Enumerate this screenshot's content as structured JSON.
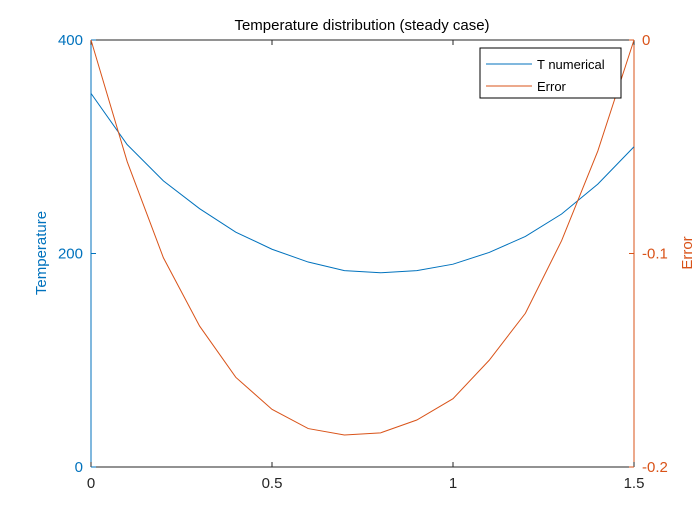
{
  "chart_data": {
    "type": "line",
    "title": "Temperature distribution (steady case)",
    "xlabel": "",
    "xlim": [
      0,
      1.5
    ],
    "x_ticks": [
      "0",
      "0.5",
      "1",
      "1.5"
    ],
    "y_left": {
      "label": "Temperature",
      "lim": [
        0,
        400
      ],
      "ticks": [
        "0",
        "200",
        "400"
      ],
      "color": "#0072BD"
    },
    "y_right": {
      "label": "Error",
      "lim": [
        -0.2,
        0
      ],
      "ticks": [
        "-0.2",
        "-0.1",
        "0"
      ],
      "color": "#D95319"
    },
    "legend_position": "top-right",
    "grid": false,
    "series": [
      {
        "name": "T numerical",
        "axis": "left",
        "color": "#0072BD",
        "x": [
          0,
          0.1,
          0.2,
          0.3,
          0.4,
          0.5,
          0.6,
          0.7,
          0.8,
          0.9,
          1.0,
          1.1,
          1.2,
          1.3,
          1.4,
          1.5
        ],
        "values": [
          350,
          302,
          268,
          242,
          220,
          204,
          192,
          184,
          182,
          184,
          190,
          201,
          216,
          237,
          265,
          300
        ]
      },
      {
        "name": "Error",
        "axis": "right",
        "color": "#D95319",
        "x": [
          0,
          0.1,
          0.2,
          0.3,
          0.4,
          0.5,
          0.6,
          0.7,
          0.8,
          0.9,
          1.0,
          1.1,
          1.2,
          1.3,
          1.4,
          1.5
        ],
        "values": [
          0,
          -0.057,
          -0.102,
          -0.134,
          -0.158,
          -0.173,
          -0.182,
          -0.185,
          -0.184,
          -0.178,
          -0.168,
          -0.15,
          -0.128,
          -0.094,
          -0.052,
          0
        ]
      }
    ]
  }
}
